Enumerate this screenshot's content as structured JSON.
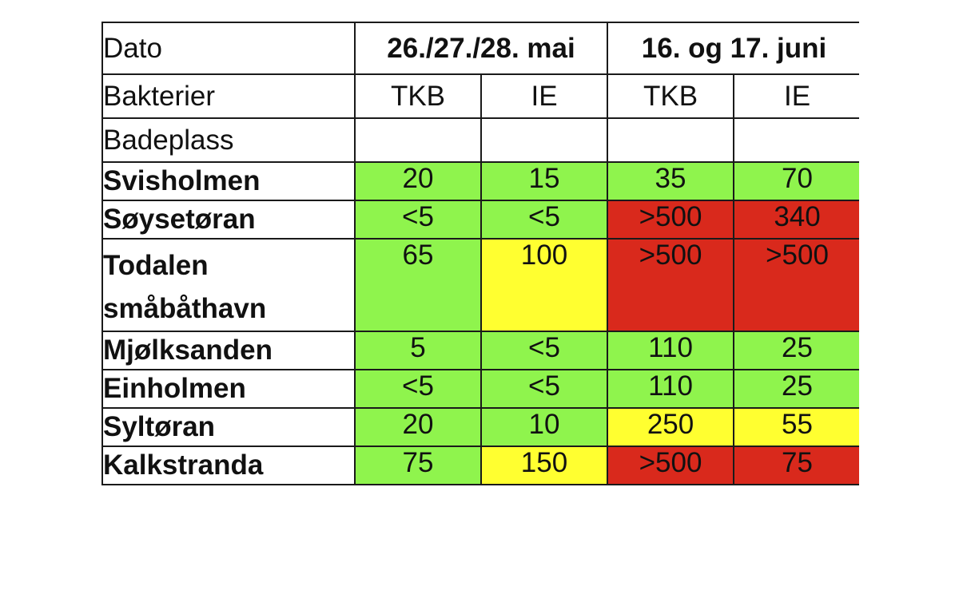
{
  "colors": {
    "green": "#8ff44d",
    "yellow": "#ffff30",
    "red": "#d9291c"
  },
  "header": {
    "date_label": "Dato",
    "period1": "26./27./28. mai",
    "period2": "16. og 17. juni",
    "bacteria_label": "Bakterier",
    "cols": [
      "TKB",
      "IE",
      "TKB",
      "IE"
    ],
    "place_label": "Badeplass"
  },
  "rows": [
    {
      "name": "Svisholmen",
      "values": [
        "20",
        "15",
        "35",
        "70"
      ],
      "status": [
        "green",
        "green",
        "green",
        "green"
      ]
    },
    {
      "name": "Søysetøran",
      "values": [
        "<5",
        "<5",
        ">500",
        "340"
      ],
      "status": [
        "green",
        "green",
        "red",
        "red"
      ]
    },
    {
      "name": "Todalen småbåthavn",
      "values": [
        "65",
        "100",
        ">500",
        ">500"
      ],
      "status": [
        "green",
        "yellow",
        "red",
        "red"
      ]
    },
    {
      "name": "Mjølksanden",
      "values": [
        "5",
        "<5",
        "110",
        "25"
      ],
      "status": [
        "green",
        "green",
        "green",
        "green"
      ]
    },
    {
      "name": "Einholmen",
      "values": [
        "<5",
        "<5",
        "110",
        "25"
      ],
      "status": [
        "green",
        "green",
        "green",
        "green"
      ]
    },
    {
      "name": "Syltøran",
      "values": [
        "20",
        "10",
        "250",
        "55"
      ],
      "status": [
        "green",
        "green",
        "yellow",
        "yellow"
      ]
    },
    {
      "name": "Kalkstranda",
      "values": [
        "75",
        "150",
        ">500",
        "75"
      ],
      "status": [
        "green",
        "yellow",
        "red",
        "red"
      ]
    }
  ]
}
